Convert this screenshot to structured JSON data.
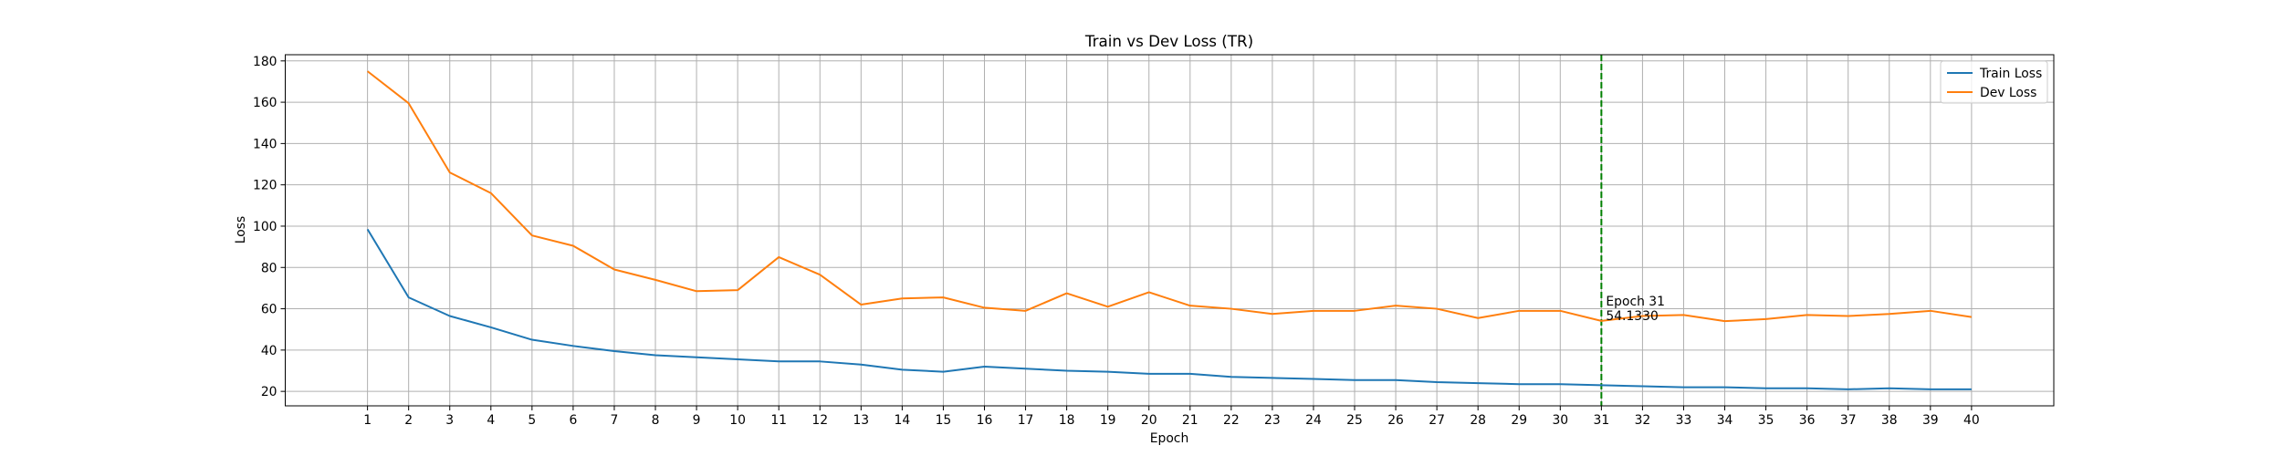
{
  "chart_data": {
    "type": "line",
    "title": "Train vs Dev Loss (TR)",
    "xlabel": "Epoch",
    "ylabel": "Loss",
    "x": [
      1,
      2,
      3,
      4,
      5,
      6,
      7,
      8,
      9,
      10,
      11,
      12,
      13,
      14,
      15,
      16,
      17,
      18,
      19,
      20,
      21,
      22,
      23,
      24,
      25,
      26,
      27,
      28,
      29,
      30,
      31,
      32,
      33,
      34,
      35,
      36,
      37,
      38,
      39,
      40
    ],
    "xlim": [
      -1,
      42
    ],
    "ylim": [
      13,
      183
    ],
    "yticks": [
      20,
      40,
      60,
      80,
      100,
      120,
      140,
      160,
      180
    ],
    "grid": true,
    "legend_position": "top-right",
    "series": [
      {
        "name": "Train Loss",
        "color": "#1f77b4",
        "values": [
          98.5,
          65.5,
          56.5,
          51.0,
          45.0,
          42.0,
          39.5,
          37.5,
          36.5,
          35.5,
          34.5,
          34.5,
          33.0,
          30.5,
          29.5,
          32.0,
          31.0,
          30.0,
          29.5,
          28.5,
          28.5,
          27.0,
          26.5,
          26.0,
          25.5,
          25.5,
          24.5,
          24.0,
          23.5,
          23.5,
          23.0,
          22.5,
          22.0,
          22.0,
          21.5,
          21.5,
          21.0,
          21.5,
          21.0,
          21.0
        ]
      },
      {
        "name": "Dev Loss",
        "color": "#ff7f0e",
        "values": [
          175.0,
          159.5,
          126.0,
          116.0,
          95.5,
          90.5,
          79.0,
          74.0,
          68.5,
          69.0,
          85.0,
          76.5,
          62.0,
          65.0,
          65.5,
          60.5,
          59.0,
          67.5,
          61.0,
          68.0,
          61.5,
          60.0,
          57.5,
          59.0,
          59.0,
          61.5,
          60.0,
          55.5,
          59.0,
          59.0,
          54.133,
          56.5,
          57.0,
          54.0,
          55.0,
          57.0,
          56.5,
          57.5,
          59.0,
          56.0
        ]
      }
    ],
    "best_epoch_line": {
      "x": 31,
      "color": "#008000",
      "label_line1": "Epoch 31",
      "label_line2": "54.1330"
    }
  }
}
